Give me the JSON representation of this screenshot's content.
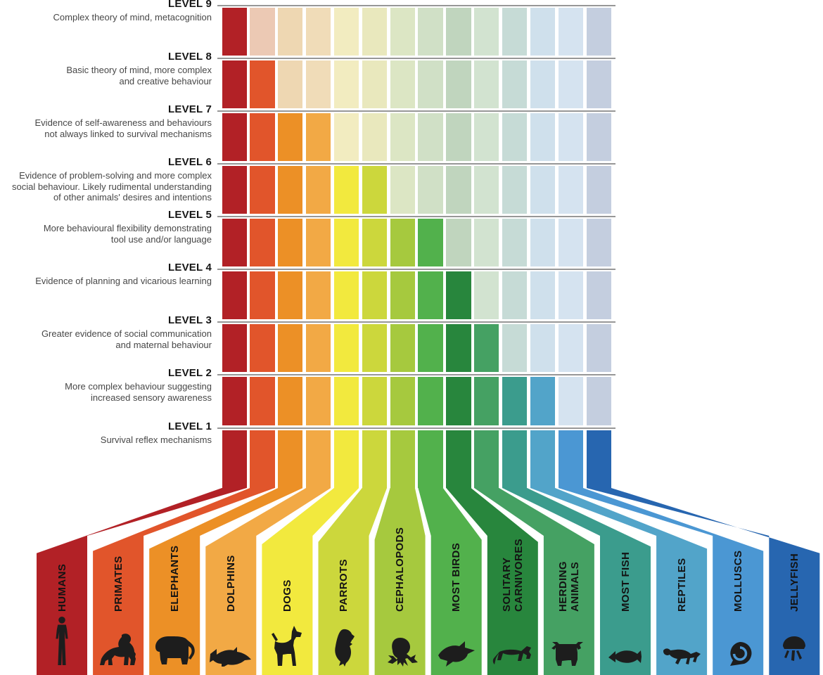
{
  "colors": {
    "background": "#ffffff",
    "separator_line": "#979797",
    "icon": "#1d1d1d",
    "level_label_text": "#161616",
    "description_text": "#474747",
    "animal_label_text": "#131313"
  },
  "levels": [
    {
      "level": 9,
      "label": "LEVEL 9",
      "description": "Complex theory of mind, metacognition"
    },
    {
      "level": 8,
      "label": "LEVEL 8",
      "description": "Basic theory of mind, more complex\nand creative behaviour"
    },
    {
      "level": 7,
      "label": "LEVEL 7",
      "description": "Evidence of self-awareness and behaviours\nnot always linked to survival mechanisms"
    },
    {
      "level": 6,
      "label": "LEVEL 6",
      "description": "Evidence of problem-solving and more complex\nsocial behaviour. Likely rudimental understanding\nof other animals' desires and intentions"
    },
    {
      "level": 5,
      "label": "LEVEL 5",
      "description": "More behavioural flexibility demonstrating\ntool use and/or language"
    },
    {
      "level": 4,
      "label": "LEVEL 4",
      "description": "Evidence of planning and vicarious learning"
    },
    {
      "level": 3,
      "label": "LEVEL 3",
      "description": "Greater evidence of social communication\nand maternal behaviour"
    },
    {
      "level": 2,
      "label": "LEVEL 2",
      "description": "More complex behaviour suggesting\nincreased sensory awareness"
    },
    {
      "level": 1,
      "label": "LEVEL 1",
      "description": "Survival reflex mechanisms"
    }
  ],
  "animals": [
    {
      "name": "HUMANS",
      "label_lines": "HUMANS",
      "icon": "human-icon",
      "level": 9,
      "color": "#b22126",
      "faded_color": "#ecc9b8"
    },
    {
      "name": "PRIMATES",
      "label_lines": "PRIMATES",
      "icon": "primate-icon",
      "level": 8,
      "color": "#e1552b",
      "faded_color": "#ecc9b4"
    },
    {
      "name": "ELEPHANTS",
      "label_lines": "ELEPHANTS",
      "icon": "elephant-icon",
      "level": 7,
      "color": "#ec9026",
      "faded_color": "#eed7b2"
    },
    {
      "name": "DOLPHINS",
      "label_lines": "DOLPHINS",
      "icon": "dolphin-icon",
      "level": 7,
      "color": "#f2a945",
      "faded_color": "#f0dcb8"
    },
    {
      "name": "DOGS",
      "label_lines": "DOGS",
      "icon": "dog-icon",
      "level": 6,
      "color": "#f2e93e",
      "faded_color": "#f2ecc0"
    },
    {
      "name": "PARROTS",
      "label_lines": "PARROTS",
      "icon": "parrot-icon",
      "level": 6,
      "color": "#ccd73c",
      "faded_color": "#e9e8bd"
    },
    {
      "name": "CEPHALOPODS",
      "label_lines": "CEPHALOPODS",
      "icon": "octopus-icon",
      "level": 5,
      "color": "#a6c93e",
      "faded_color": "#dce6c4"
    },
    {
      "name": "MOST BIRDS",
      "label_lines": "MOST BIRDS",
      "icon": "flying-bird-icon",
      "level": 5,
      "color": "#52b14c",
      "faded_color": "#d0e0c6"
    },
    {
      "name": "SOLITARY CARNIVORES",
      "label_lines": "SOLITARY\nCARNIVORES",
      "icon": "big-cat-icon",
      "level": 4,
      "color": "#28863d",
      "faded_color": "#c0d5be"
    },
    {
      "name": "HERDING ANIMALS",
      "label_lines": "HERDING\nANIMALS",
      "icon": "cow-icon",
      "level": 3,
      "color": "#45a163",
      "faded_color": "#d2e3d0"
    },
    {
      "name": "MOST FISH",
      "label_lines": "MOST FISH",
      "icon": "fish-icon",
      "level": 2,
      "color": "#3b9c8d",
      "faded_color": "#c6dbd6"
    },
    {
      "name": "REPTILES",
      "label_lines": "REPTILES",
      "icon": "lizard-icon",
      "level": 2,
      "color": "#52a4c9",
      "faded_color": "#cfe0ec"
    },
    {
      "name": "MOLLUSCS",
      "label_lines": "MOLLUSCS",
      "icon": "snail-shell-icon",
      "level": 1,
      "color": "#4b97d3",
      "faded_color": "#d5e3f0"
    },
    {
      "name": "JELLYFISH",
      "label_lines": "JELLYFISH",
      "icon": "jellyfish-icon",
      "level": 1,
      "color": "#2766b0",
      "faded_color": "#c4cedf"
    }
  ],
  "chart_data": {
    "type": "heatmap",
    "x_categories": [
      "HUMANS",
      "PRIMATES",
      "ELEPHANTS",
      "DOLPHINS",
      "DOGS",
      "PARROTS",
      "CEPHALOPODS",
      "MOST BIRDS",
      "SOLITARY CARNIVORES",
      "HERDING ANIMALS",
      "MOST FISH",
      "REPTILES",
      "MOLLUSCS",
      "JELLYFISH"
    ],
    "y_categories": [
      "LEVEL 1",
      "LEVEL 2",
      "LEVEL 3",
      "LEVEL 4",
      "LEVEL 5",
      "LEVEL 6",
      "LEVEL 7",
      "LEVEL 8",
      "LEVEL 9"
    ],
    "values": [
      9,
      8,
      7,
      7,
      6,
      6,
      5,
      5,
      4,
      3,
      2,
      2,
      1,
      1
    ],
    "value_meaning": "highest consciousness level attained by each animal group; cells up to that level are shown saturated, cells above are desaturated",
    "y_level_descriptions": {
      "1": "Survival reflex mechanisms",
      "2": "More complex behaviour suggesting increased sensory awareness",
      "3": "Greater evidence of social communication and maternal behaviour",
      "4": "Evidence of planning and vicarious learning",
      "5": "More behavioural flexibility demonstrating tool use and/or language",
      "6": "Evidence of problem-solving and more complex social behaviour. Likely rudimental understanding of other animals' desires and intentions",
      "7": "Evidence of self-awareness and behaviours not always linked to survival mechanisms",
      "8": "Basic theory of mind, more complex and creative behaviour",
      "9": "Complex theory of mind, metacognition"
    },
    "legend_position": "left",
    "grid": "9 rows x 14 columns"
  }
}
